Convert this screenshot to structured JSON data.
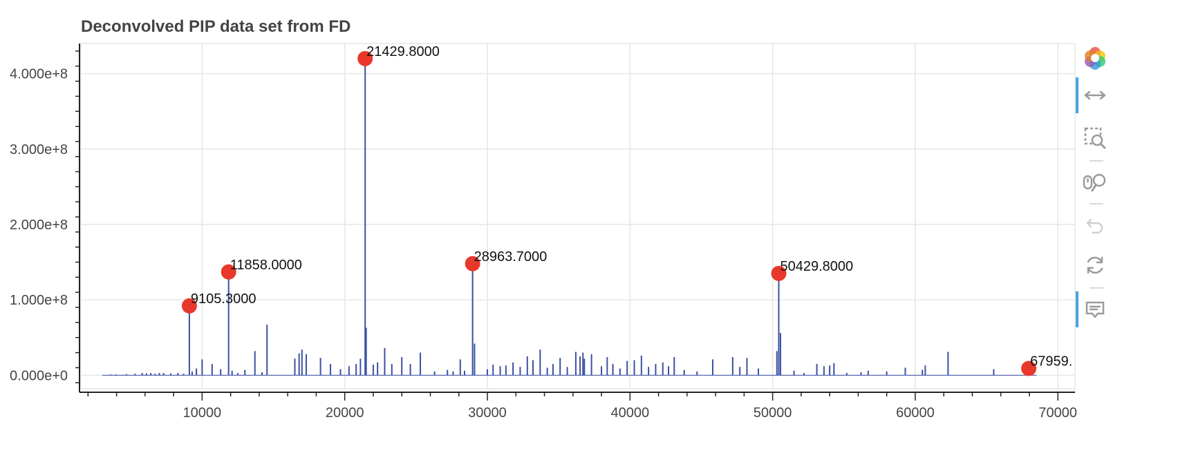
{
  "chart_data": {
    "type": "bar",
    "title": "Deconvolved PIP data set from FD",
    "xlabel": "",
    "ylabel": "",
    "xlim": [
      1500,
      71200
    ],
    "ylim": [
      -18000000.0,
      440000000.0
    ],
    "grid": true,
    "x_ticks": [
      10000,
      20000,
      30000,
      40000,
      50000,
      60000,
      70000
    ],
    "x_tick_labels": [
      "10000",
      "20000",
      "30000",
      "40000",
      "50000",
      "60000",
      "70000"
    ],
    "y_ticks": [
      0,
      100000000,
      200000000,
      300000000,
      400000000
    ],
    "y_tick_labels": [
      "0.000e+0",
      "1.000e+8",
      "2.000e+8",
      "3.000e+8",
      "4.000e+8"
    ],
    "spectrum_color": "#3b4fa3",
    "peak_marker_color": "#e8382b",
    "spectrum": {
      "x": [
        3600,
        3950,
        4700,
        5300,
        5800,
        6100,
        6400,
        6700,
        7000,
        7300,
        7800,
        8300,
        8700,
        9105.3,
        9300,
        9600,
        10000,
        10700,
        11300,
        11858.0,
        12100,
        12500,
        13000,
        13700,
        14200,
        14550,
        16500,
        16800,
        17000,
        17300,
        18300,
        19000,
        19700,
        20300,
        20800,
        21100,
        21429.8,
        21500,
        22000,
        22300,
        22800,
        23300,
        24000,
        24600,
        25300,
        26300,
        27200,
        27600,
        28100,
        28400,
        28963.7,
        29100,
        30000,
        30400,
        30900,
        31300,
        31800,
        32300,
        32800,
        33200,
        33700,
        34200,
        34600,
        35100,
        35600,
        36200,
        36500,
        36700,
        36800,
        37300,
        38000,
        38400,
        38800,
        39300,
        39800,
        40300,
        40800,
        41300,
        41800,
        42300,
        42700,
        43100,
        43800,
        44700,
        45800,
        47200,
        47700,
        48200,
        49000,
        50300,
        50429.8,
        50550,
        51500,
        52200,
        53100,
        53600,
        54000,
        54300,
        55200,
        56200,
        56700,
        58000,
        59300,
        60500,
        60700,
        62300,
        65500,
        67959.0
      ],
      "values": [
        1000000,
        1000000,
        1500000,
        2000000,
        3000000,
        2500000,
        3000000,
        2000000,
        3000000,
        3000000,
        2500000,
        3000000,
        2000000,
        92000000,
        5000000,
        9000000,
        21000000,
        15000000,
        8000000,
        137000000,
        6000000,
        3000000,
        7000000,
        32000000,
        4000000,
        67000000,
        22000000,
        29000000,
        34000000,
        28000000,
        23000000,
        15000000,
        8000000,
        12000000,
        15000000,
        22000000,
        420000000,
        63000000,
        14000000,
        17000000,
        36000000,
        15000000,
        24000000,
        15000000,
        30000000,
        5000000,
        7000000,
        5000000,
        21000000,
        6000000,
        148000000,
        42000000,
        8000000,
        14000000,
        12000000,
        13000000,
        17000000,
        11000000,
        25000000,
        20000000,
        34000000,
        10000000,
        15000000,
        23000000,
        11000000,
        31000000,
        25000000,
        30000000,
        22000000,
        28000000,
        12000000,
        24000000,
        15000000,
        9000000,
        19000000,
        20000000,
        26000000,
        11000000,
        15000000,
        17000000,
        12000000,
        24000000,
        7000000,
        5000000,
        21000000,
        24000000,
        11000000,
        23000000,
        9000000,
        32000000,
        135000000,
        56000000,
        6000000,
        3000000,
        15000000,
        12000000,
        13000000,
        16000000,
        3000000,
        4000000,
        6000000,
        5000000,
        10000000,
        7000000,
        13000000,
        31000000,
        8000000,
        9000000
      ]
    },
    "peaks": [
      {
        "x": 9105.3,
        "y": 92000000,
        "label": "9105.3000"
      },
      {
        "x": 11858.0,
        "y": 137000000,
        "label": "11858.0000"
      },
      {
        "x": 21429.8,
        "y": 420000000,
        "label": "21429.8000"
      },
      {
        "x": 28963.7,
        "y": 148000000,
        "label": "28963.7000"
      },
      {
        "x": 50429.8,
        "y": 135000000,
        "label": "50429.8000"
      },
      {
        "x": 67959.0,
        "y": 9000000,
        "label": "67959."
      }
    ]
  },
  "toolbar": {
    "logo_icon": "bokeh-logo-icon",
    "tools": [
      {
        "name": "pan-tool",
        "icon": "horizontal-arrows-icon",
        "active": true
      },
      {
        "name": "box-zoom-tool",
        "icon": "box-zoom-icon",
        "active": false
      },
      {
        "name": "wheel-zoom-tool",
        "icon": "wheel-zoom-icon",
        "active": false
      },
      {
        "name": "undo-tool",
        "icon": "undo-icon",
        "active": false
      },
      {
        "name": "reset-tool",
        "icon": "reset-icon",
        "active": false
      },
      {
        "name": "hover-tool",
        "icon": "speech-bubble-icon",
        "active": true
      }
    ]
  }
}
